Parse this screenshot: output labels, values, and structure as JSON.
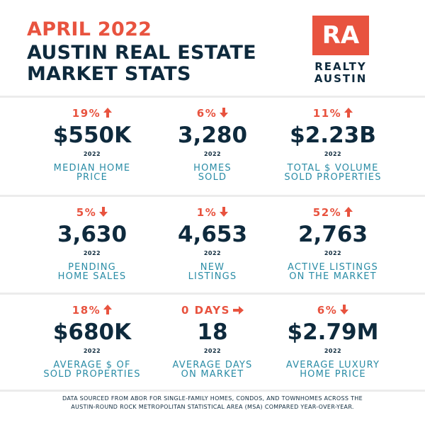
{
  "header": {
    "date": "APRIL 2022",
    "title_lines": [
      "AUSTIN REAL ESTATE",
      "MARKET STATS"
    ]
  },
  "logo": {
    "mark": "RA",
    "name_lines": [
      "REALTY",
      "AUSTIN"
    ]
  },
  "stats": [
    [
      {
        "change": "19%",
        "direction": "up",
        "value": "$550K",
        "year": "2022",
        "label_lines": [
          "MEDIAN HOME",
          "PRICE"
        ]
      },
      {
        "change": "6%",
        "direction": "down",
        "value": "3,280",
        "year": "2022",
        "label_lines": [
          "HOMES",
          "SOLD"
        ]
      },
      {
        "change": "11%",
        "direction": "up",
        "value": "$2.23B",
        "year": "2022",
        "label_lines": [
          "TOTAL $ VOLUME",
          "SOLD PROPERTIES"
        ]
      }
    ],
    [
      {
        "change": "5%",
        "direction": "down",
        "value": "3,630",
        "year": "2022",
        "label_lines": [
          "PENDING",
          "HOME SALES"
        ]
      },
      {
        "change": "1%",
        "direction": "down",
        "value": "4,653",
        "year": "2022",
        "label_lines": [
          "NEW",
          "LISTINGS"
        ]
      },
      {
        "change": "52%",
        "direction": "up",
        "value": "2,763",
        "year": "2022",
        "label_lines": [
          "ACTIVE LISTINGS",
          "ON THE MARKET"
        ]
      }
    ],
    [
      {
        "change": "18%",
        "direction": "up",
        "value": "$680K",
        "year": "2022",
        "label_lines": [
          "AVERAGE $ OF",
          "SOLD PROPERTIES"
        ]
      },
      {
        "change": "0 DAYS",
        "direction": "right",
        "value": "18",
        "year": "2022",
        "label_lines": [
          "AVERAGE DAYS",
          "ON MARKET"
        ]
      },
      {
        "change": "6%",
        "direction": "down",
        "value": "$2.79M",
        "year": "2022",
        "label_lines": [
          "AVERAGE LUXURY",
          "HOME PRICE"
        ]
      }
    ]
  ],
  "footer": {
    "lines": [
      "DATA SOURCED FROM ABOR FOR SINGLE-FAMILY HOMES, CONDOS, AND TOWNHOMES ACROSS THE",
      "AUSTIN-ROUND ROCK METROPOLITAN STATISTICAL AREA (MSA) COMPARED YEAR-OVER-YEAR."
    ]
  }
}
